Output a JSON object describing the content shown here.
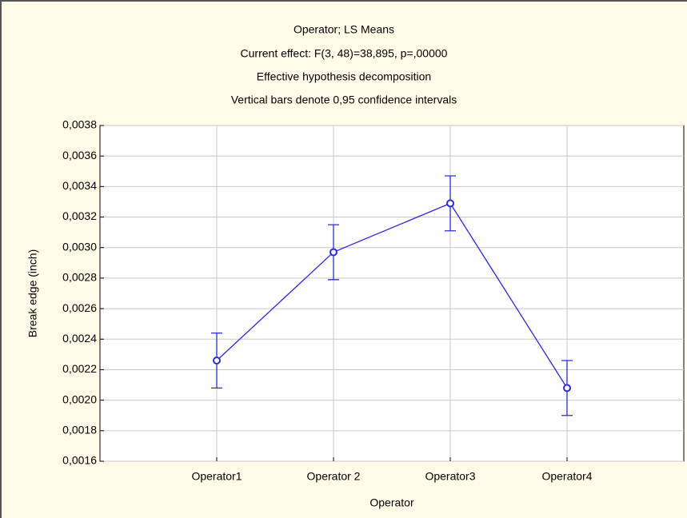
{
  "chart_data": {
    "type": "line",
    "title": "Operator; LS Means",
    "subtitles": [
      "Current effect: F(3, 48)=38,895, p=,00000",
      "Effective hypothesis decomposition",
      "Vertical bars denote 0,95 confidence intervals"
    ],
    "x_label": "Operator",
    "y_label": "Break edge (inch)",
    "categories": [
      "Operator1",
      "Operator 2",
      "Operator3",
      "Operator4"
    ],
    "series": [
      {
        "name": "Break edge (inch)",
        "color": "#2a2ae8",
        "values": [
          0.00226,
          0.00297,
          0.00329,
          0.00208
        ],
        "errors": [
          0.00018,
          0.00018,
          0.00018,
          0.00018
        ]
      }
    ],
    "ylim": [
      0.0016,
      0.0038
    ],
    "yticks": [
      {
        "value": 0.0016,
        "label": "0,0016"
      },
      {
        "value": 0.0018,
        "label": "0,0018"
      },
      {
        "value": 0.002,
        "label": "0,0020"
      },
      {
        "value": 0.0022,
        "label": "0,0022"
      },
      {
        "value": 0.0024,
        "label": "0,0024"
      },
      {
        "value": 0.0026,
        "label": "0,0026"
      },
      {
        "value": 0.0028,
        "label": "0,0028"
      },
      {
        "value": 0.003,
        "label": "0,0030"
      },
      {
        "value": 0.0032,
        "label": "0,0032"
      },
      {
        "value": 0.0034,
        "label": "0,0034"
      },
      {
        "value": 0.0036,
        "label": "0,0036"
      },
      {
        "value": 0.0038,
        "label": "0,0038"
      }
    ],
    "grid": true
  }
}
